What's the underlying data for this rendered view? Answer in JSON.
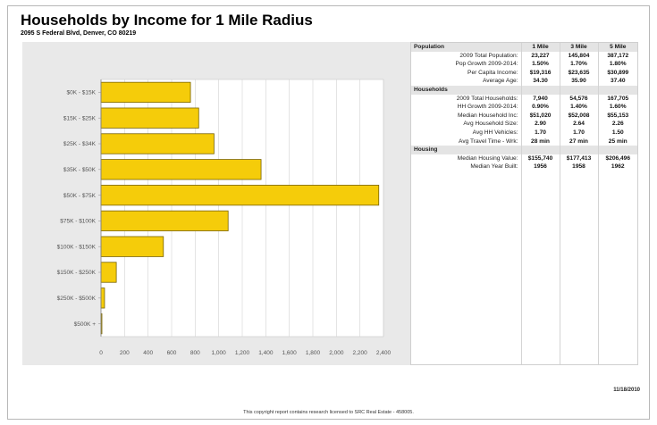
{
  "report": {
    "title": "Households by Income for 1 Mile Radius",
    "address": "2095 S Federal Blvd, Denver, CO  80219",
    "date": "11/18/2010",
    "footer_note": "This copyright report contains research licensed to SRC Real Estate - 458005."
  },
  "chart_data": {
    "type": "bar",
    "orientation": "horizontal",
    "categories": [
      "$0K - $15K",
      "$15K - $25K",
      "$25K - $34K",
      "$35K - $50K",
      "$50K - $75K",
      "$75K - $100K",
      "$100K - $150K",
      "$150K - $250K",
      "$250K - $500K",
      "$500K +"
    ],
    "values": [
      760,
      830,
      960,
      1360,
      2360,
      1080,
      530,
      130,
      30,
      5
    ],
    "xlim": [
      0,
      2400
    ],
    "xticks": [
      "0",
      "200",
      "400",
      "600",
      "800",
      "1,000",
      "1,200",
      "1,400",
      "1,600",
      "1,800",
      "2,000",
      "2,200",
      "2,400"
    ],
    "xtick_values": [
      0,
      200,
      400,
      600,
      800,
      1000,
      1200,
      1400,
      1600,
      1800,
      2000,
      2200,
      2400
    ],
    "grid": true,
    "bar_color": "#f5cc0a",
    "bar_edge": "#7a6400"
  },
  "stats": {
    "columns": [
      "1 Mile",
      "3 Mile",
      "5 Mile"
    ],
    "sections": [
      {
        "name": "Population",
        "rows": [
          {
            "label": "2009 Total Population:",
            "values": [
              "23,227",
              "145,804",
              "387,172"
            ]
          },
          {
            "label": "Pop Growth 2009-2014:",
            "values": [
              "1.50%",
              "1.70%",
              "1.80%"
            ]
          },
          {
            "label": "Per Capita Income:",
            "values": [
              "$19,316",
              "$23,635",
              "$30,899"
            ]
          },
          {
            "label": "Average Age:",
            "values": [
              "34.30",
              "35.90",
              "37.40"
            ]
          }
        ]
      },
      {
        "name": "Households",
        "rows": [
          {
            "label": "2009 Total Households:",
            "values": [
              "7,940",
              "54,576",
              "167,705"
            ]
          },
          {
            "label": "HH Growth 2009-2014:",
            "values": [
              "0.90%",
              "1.40%",
              "1.60%"
            ]
          },
          {
            "label": "Median Household Inc:",
            "values": [
              "$51,020",
              "$52,008",
              "$55,153"
            ]
          },
          {
            "label": "Avg Household Size:",
            "values": [
              "2.90",
              "2.64",
              "2.26"
            ]
          },
          {
            "label": "Avg HH Vehicles:",
            "values": [
              "1.70",
              "1.70",
              "1.50"
            ]
          },
          {
            "label": "Avg Travel Time - Wrk:",
            "values": [
              "28 min",
              "27 min",
              "25 min"
            ]
          }
        ]
      },
      {
        "name": "Housing",
        "rows": [
          {
            "label": "Median Housing Value:",
            "values": [
              "$155,740",
              "$177,413",
              "$206,496"
            ]
          },
          {
            "label": "Median Year Built:",
            "values": [
              "1956",
              "1958",
              "1962"
            ]
          }
        ]
      }
    ]
  }
}
